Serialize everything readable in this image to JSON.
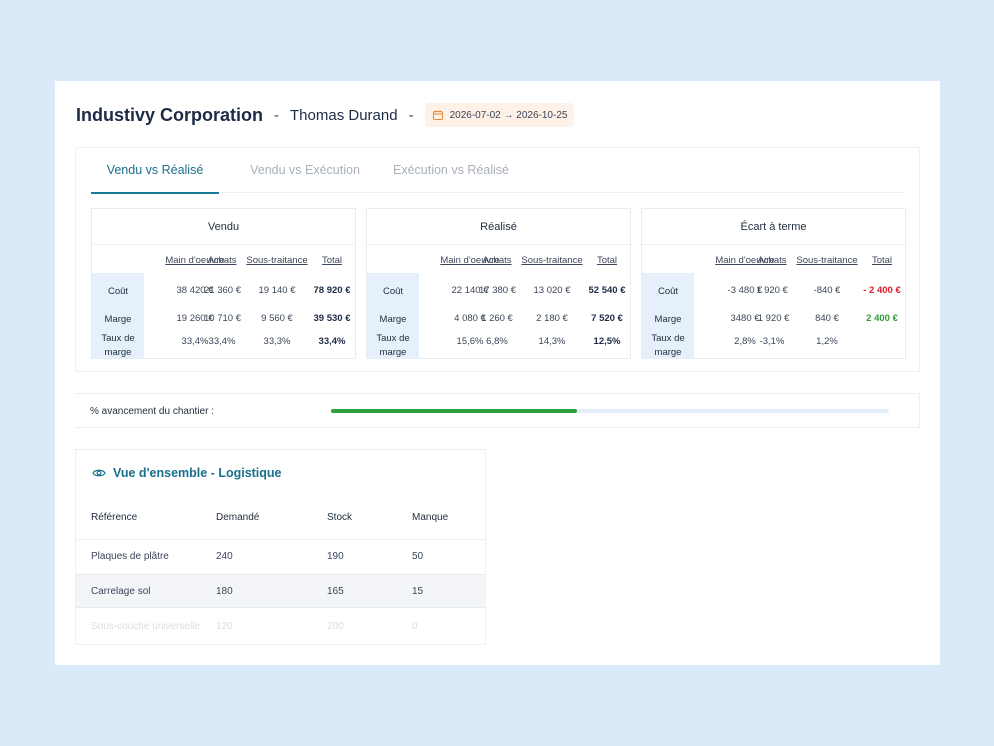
{
  "header": {
    "company": "Industivy Corporation",
    "separator": "-",
    "person": "Thomas Durand",
    "date_range": "2026-07-02 → 2026-10-25",
    "date_icon": "calendar-icon"
  },
  "tabs": [
    {
      "label": "Vendu vs Réalisé",
      "active": true
    },
    {
      "label": "Vendu vs Exécution",
      "active": false
    },
    {
      "label": "Exécution vs Réalisé",
      "active": false
    }
  ],
  "columns": [
    "Main d'oeuvre",
    "Achats",
    "Sous-traitance",
    "Total"
  ],
  "row_labels": {
    "cout": "Coût",
    "marge": "Marge",
    "taux_l1": "Taux de",
    "taux_l2": "marge"
  },
  "tables": [
    {
      "title": "Vendu",
      "cout": [
        "38 420 €",
        "21 360 €",
        "19 140 €",
        "78 920 €"
      ],
      "marge": [
        "19 260 €",
        "10 710 €",
        "9 560 €",
        "39 530 €"
      ],
      "taux": [
        "33,4%",
        "33,4%",
        "33,3%",
        "33,4%"
      ]
    },
    {
      "title": "Réalisé",
      "cout": [
        "22 140 €",
        "17 380 €",
        "13 020 €",
        "52 540 €"
      ],
      "marge": [
        "4 080 €",
        "1 260 €",
        "2 180 €",
        "7 520 €"
      ],
      "taux": [
        "15,6%",
        "6,8%",
        "14,3%",
        "12,5%"
      ]
    },
    {
      "title": "Écart à terme",
      "cout": [
        "-3 480 €",
        "1 920 €",
        "-840 €",
        "- 2 400 €"
      ],
      "marge": [
        "3480 €",
        "-1 920 €",
        "840 €",
        "2 400 €"
      ],
      "taux": [
        "2,8%",
        "-3,1%",
        "1,2%",
        ""
      ]
    }
  ],
  "colors": {
    "negative": "#e01b24",
    "positive": "#2f9e3c",
    "accent": "#1a7a96"
  },
  "progress": {
    "label": "% avancement du chantier :",
    "value": 0.44
  },
  "logistics": {
    "title": "Vue d'ensemble - Logistique",
    "icon": "eye-icon",
    "headers": [
      "Référence",
      "Demandé",
      "Stock",
      "Manque"
    ],
    "rows": [
      [
        "Plaques de plâtre",
        "240",
        "190",
        "50"
      ],
      [
        "Carrelage sol",
        "180",
        "165",
        "15"
      ],
      [
        "Sous-couche universelle",
        "120",
        "200",
        "0"
      ]
    ]
  }
}
